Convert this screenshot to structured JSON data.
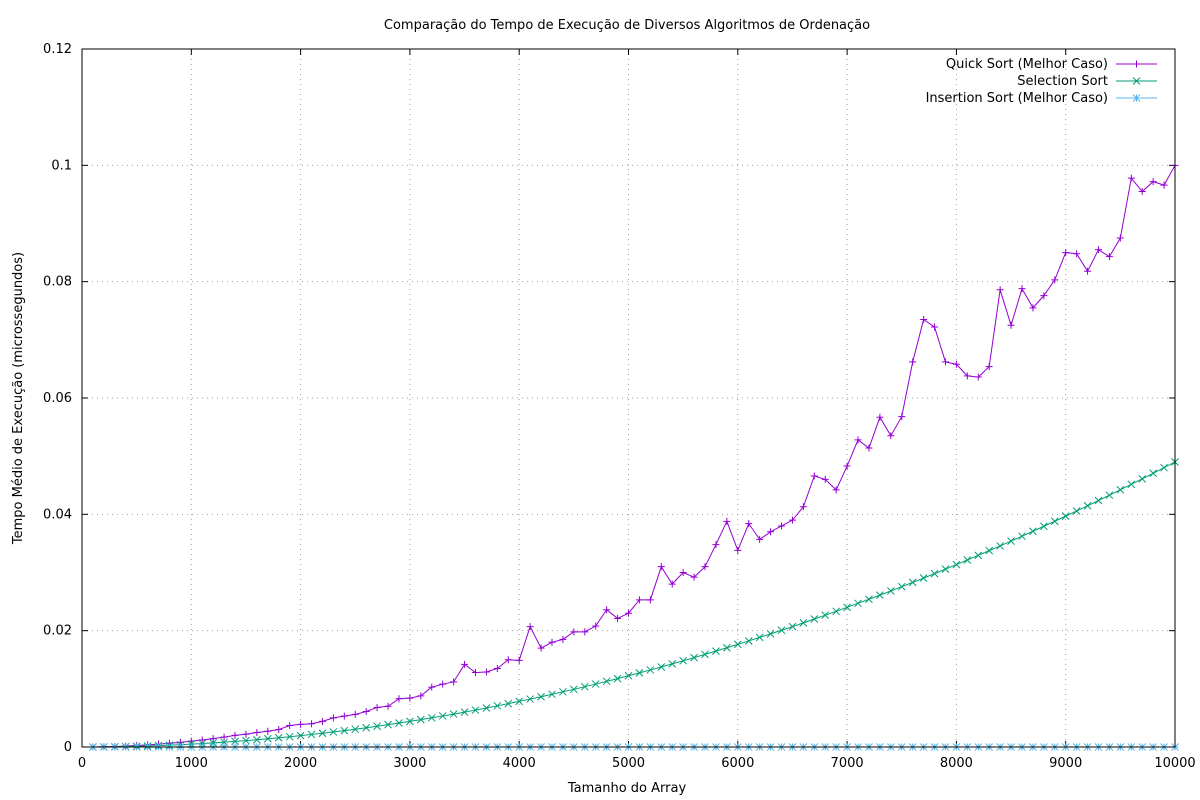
{
  "chart_data": {
    "type": "line",
    "title": "Comparação do Tempo de Execução de Diversos Algoritmos de Ordenação",
    "xlabel": "Tamanho do Array",
    "ylabel": "Tempo Médio de Execução (microssegundos)",
    "xlim": [
      0,
      10000
    ],
    "ylim": [
      0,
      0.12
    ],
    "xticks": [
      "0",
      "1000",
      "2000",
      "3000",
      "4000",
      "5000",
      "6000",
      "7000",
      "8000",
      "9000",
      "10000"
    ],
    "yticks": [
      "0",
      "0.02",
      "0.04",
      "0.06",
      "0.08",
      "0.1",
      "0.12"
    ],
    "grid": true,
    "legend_position": "top-right",
    "x": [
      100,
      200,
      300,
      400,
      500,
      600,
      700,
      800,
      900,
      1000,
      1100,
      1200,
      1300,
      1400,
      1500,
      1600,
      1700,
      1800,
      1900,
      2000,
      2100,
      2200,
      2300,
      2400,
      2500,
      2600,
      2700,
      2800,
      2900,
      3000,
      3100,
      3200,
      3300,
      3400,
      3500,
      3600,
      3700,
      3800,
      3900,
      4000,
      4100,
      4200,
      4300,
      4400,
      4500,
      4600,
      4700,
      4800,
      4900,
      5000,
      5100,
      5200,
      5300,
      5400,
      5500,
      5600,
      5700,
      5800,
      5900,
      6000,
      6100,
      6200,
      6300,
      6400,
      6500,
      6600,
      6700,
      6800,
      6900,
      7000,
      7100,
      7200,
      7300,
      7400,
      7500,
      7600,
      7700,
      7800,
      7900,
      8000,
      8100,
      8200,
      8300,
      8400,
      8500,
      8600,
      8700,
      8800,
      8900,
      9000,
      9100,
      9200,
      9300,
      9400,
      9500,
      9600,
      9700,
      9800,
      9900,
      10000
    ],
    "series": [
      {
        "name": "Quick Sort (Melhor Caso)",
        "color": "#9400d3",
        "marker": "plus",
        "values": [
          1e-05,
          4e-05,
          9e-05,
          0.00016,
          0.00025,
          0.00036,
          0.0005,
          0.00065,
          0.0008,
          0.001,
          0.0012,
          0.00145,
          0.0017,
          0.002,
          0.0022,
          0.0025,
          0.0027,
          0.003,
          0.0037,
          0.0039,
          0.004,
          0.0044,
          0.005,
          0.0053,
          0.0056,
          0.0061,
          0.0068,
          0.007,
          0.0083,
          0.0084,
          0.0088,
          0.0103,
          0.0108,
          0.0112,
          0.0142,
          0.0128,
          0.0129,
          0.0135,
          0.015,
          0.0149,
          0.0207,
          0.017,
          0.018,
          0.0185,
          0.0198,
          0.0198,
          0.0208,
          0.0236,
          0.0221,
          0.023,
          0.0253,
          0.0253,
          0.031,
          0.028,
          0.03,
          0.0292,
          0.031,
          0.0348,
          0.0388,
          0.0338,
          0.0384,
          0.0357,
          0.037,
          0.038,
          0.039,
          0.0413,
          0.0466,
          0.046,
          0.0442,
          0.0483,
          0.0528,
          0.0514,
          0.0567,
          0.0535,
          0.0568,
          0.0662,
          0.0735,
          0.0722,
          0.0662,
          0.0658,
          0.0638,
          0.0636,
          0.0654,
          0.0786,
          0.0725,
          0.0788,
          0.0755,
          0.0776,
          0.0803,
          0.085,
          0.0848,
          0.0818,
          0.0855,
          0.0843,
          0.0875,
          0.0978,
          0.0955,
          0.0972,
          0.0966,
          0.1
        ]
      },
      {
        "name": "Selection Sort",
        "color": "#009e73",
        "marker": "cross",
        "values": [
          5e-06,
          2e-05,
          4.4e-05,
          7.8e-05,
          0.000123,
          0.000176,
          0.00024,
          0.000314,
          0.000397,
          0.00049,
          0.000593,
          0.000706,
          0.000828,
          0.00096,
          0.0011,
          0.00125,
          0.00142,
          0.00159,
          0.00177,
          0.00196,
          0.00216,
          0.00237,
          0.00259,
          0.00282,
          0.00306,
          0.00331,
          0.00357,
          0.00384,
          0.00412,
          0.00441,
          0.00471,
          0.00502,
          0.00534,
          0.00566,
          0.006,
          0.00635,
          0.00671,
          0.00708,
          0.00745,
          0.00784,
          0.00824,
          0.00864,
          0.00906,
          0.00949,
          0.00992,
          0.01037,
          0.01082,
          0.01129,
          0.01176,
          0.01225,
          0.01274,
          0.01325,
          0.01376,
          0.01429,
          0.01482,
          0.01537,
          0.01592,
          0.01648,
          0.01706,
          0.01764,
          0.01823,
          0.01884,
          0.01945,
          0.02007,
          0.0207,
          0.02134,
          0.022,
          0.02266,
          0.02333,
          0.02401,
          0.0247,
          0.0254,
          0.02611,
          0.02683,
          0.02756,
          0.0283,
          0.02905,
          0.02981,
          0.03058,
          0.03136,
          0.03215,
          0.03295,
          0.03376,
          0.03457,
          0.0354,
          0.03624,
          0.03709,
          0.03795,
          0.03881,
          0.03969,
          0.04058,
          0.04147,
          0.04238,
          0.04329,
          0.04422,
          0.04516,
          0.0461,
          0.04706,
          0.04802,
          0.049
        ]
      },
      {
        "name": "Insertion Sort (Melhor Caso)",
        "color": "#56b4e9",
        "marker": "star",
        "values": [
          0,
          0,
          0,
          0,
          0,
          0,
          0,
          0,
          0,
          0,
          0,
          0,
          0,
          0,
          0,
          0,
          0,
          0,
          0,
          0,
          0,
          0,
          0,
          0,
          0,
          0,
          0,
          0,
          0,
          0,
          0,
          0,
          0,
          0,
          0,
          0,
          0,
          0,
          0,
          0,
          0,
          0,
          0,
          0,
          0,
          0,
          0,
          0,
          0,
          0,
          0,
          0,
          0,
          0,
          0,
          0,
          0,
          0,
          0,
          0,
          0,
          0,
          0,
          0,
          0,
          0,
          0,
          0,
          0,
          0,
          0,
          0,
          0,
          0,
          0,
          0,
          0,
          0,
          0,
          0,
          0,
          0,
          0,
          0,
          0,
          0,
          0,
          0,
          0,
          0,
          0,
          0,
          0,
          0,
          0,
          0,
          0,
          0,
          0,
          0
        ]
      }
    ]
  }
}
